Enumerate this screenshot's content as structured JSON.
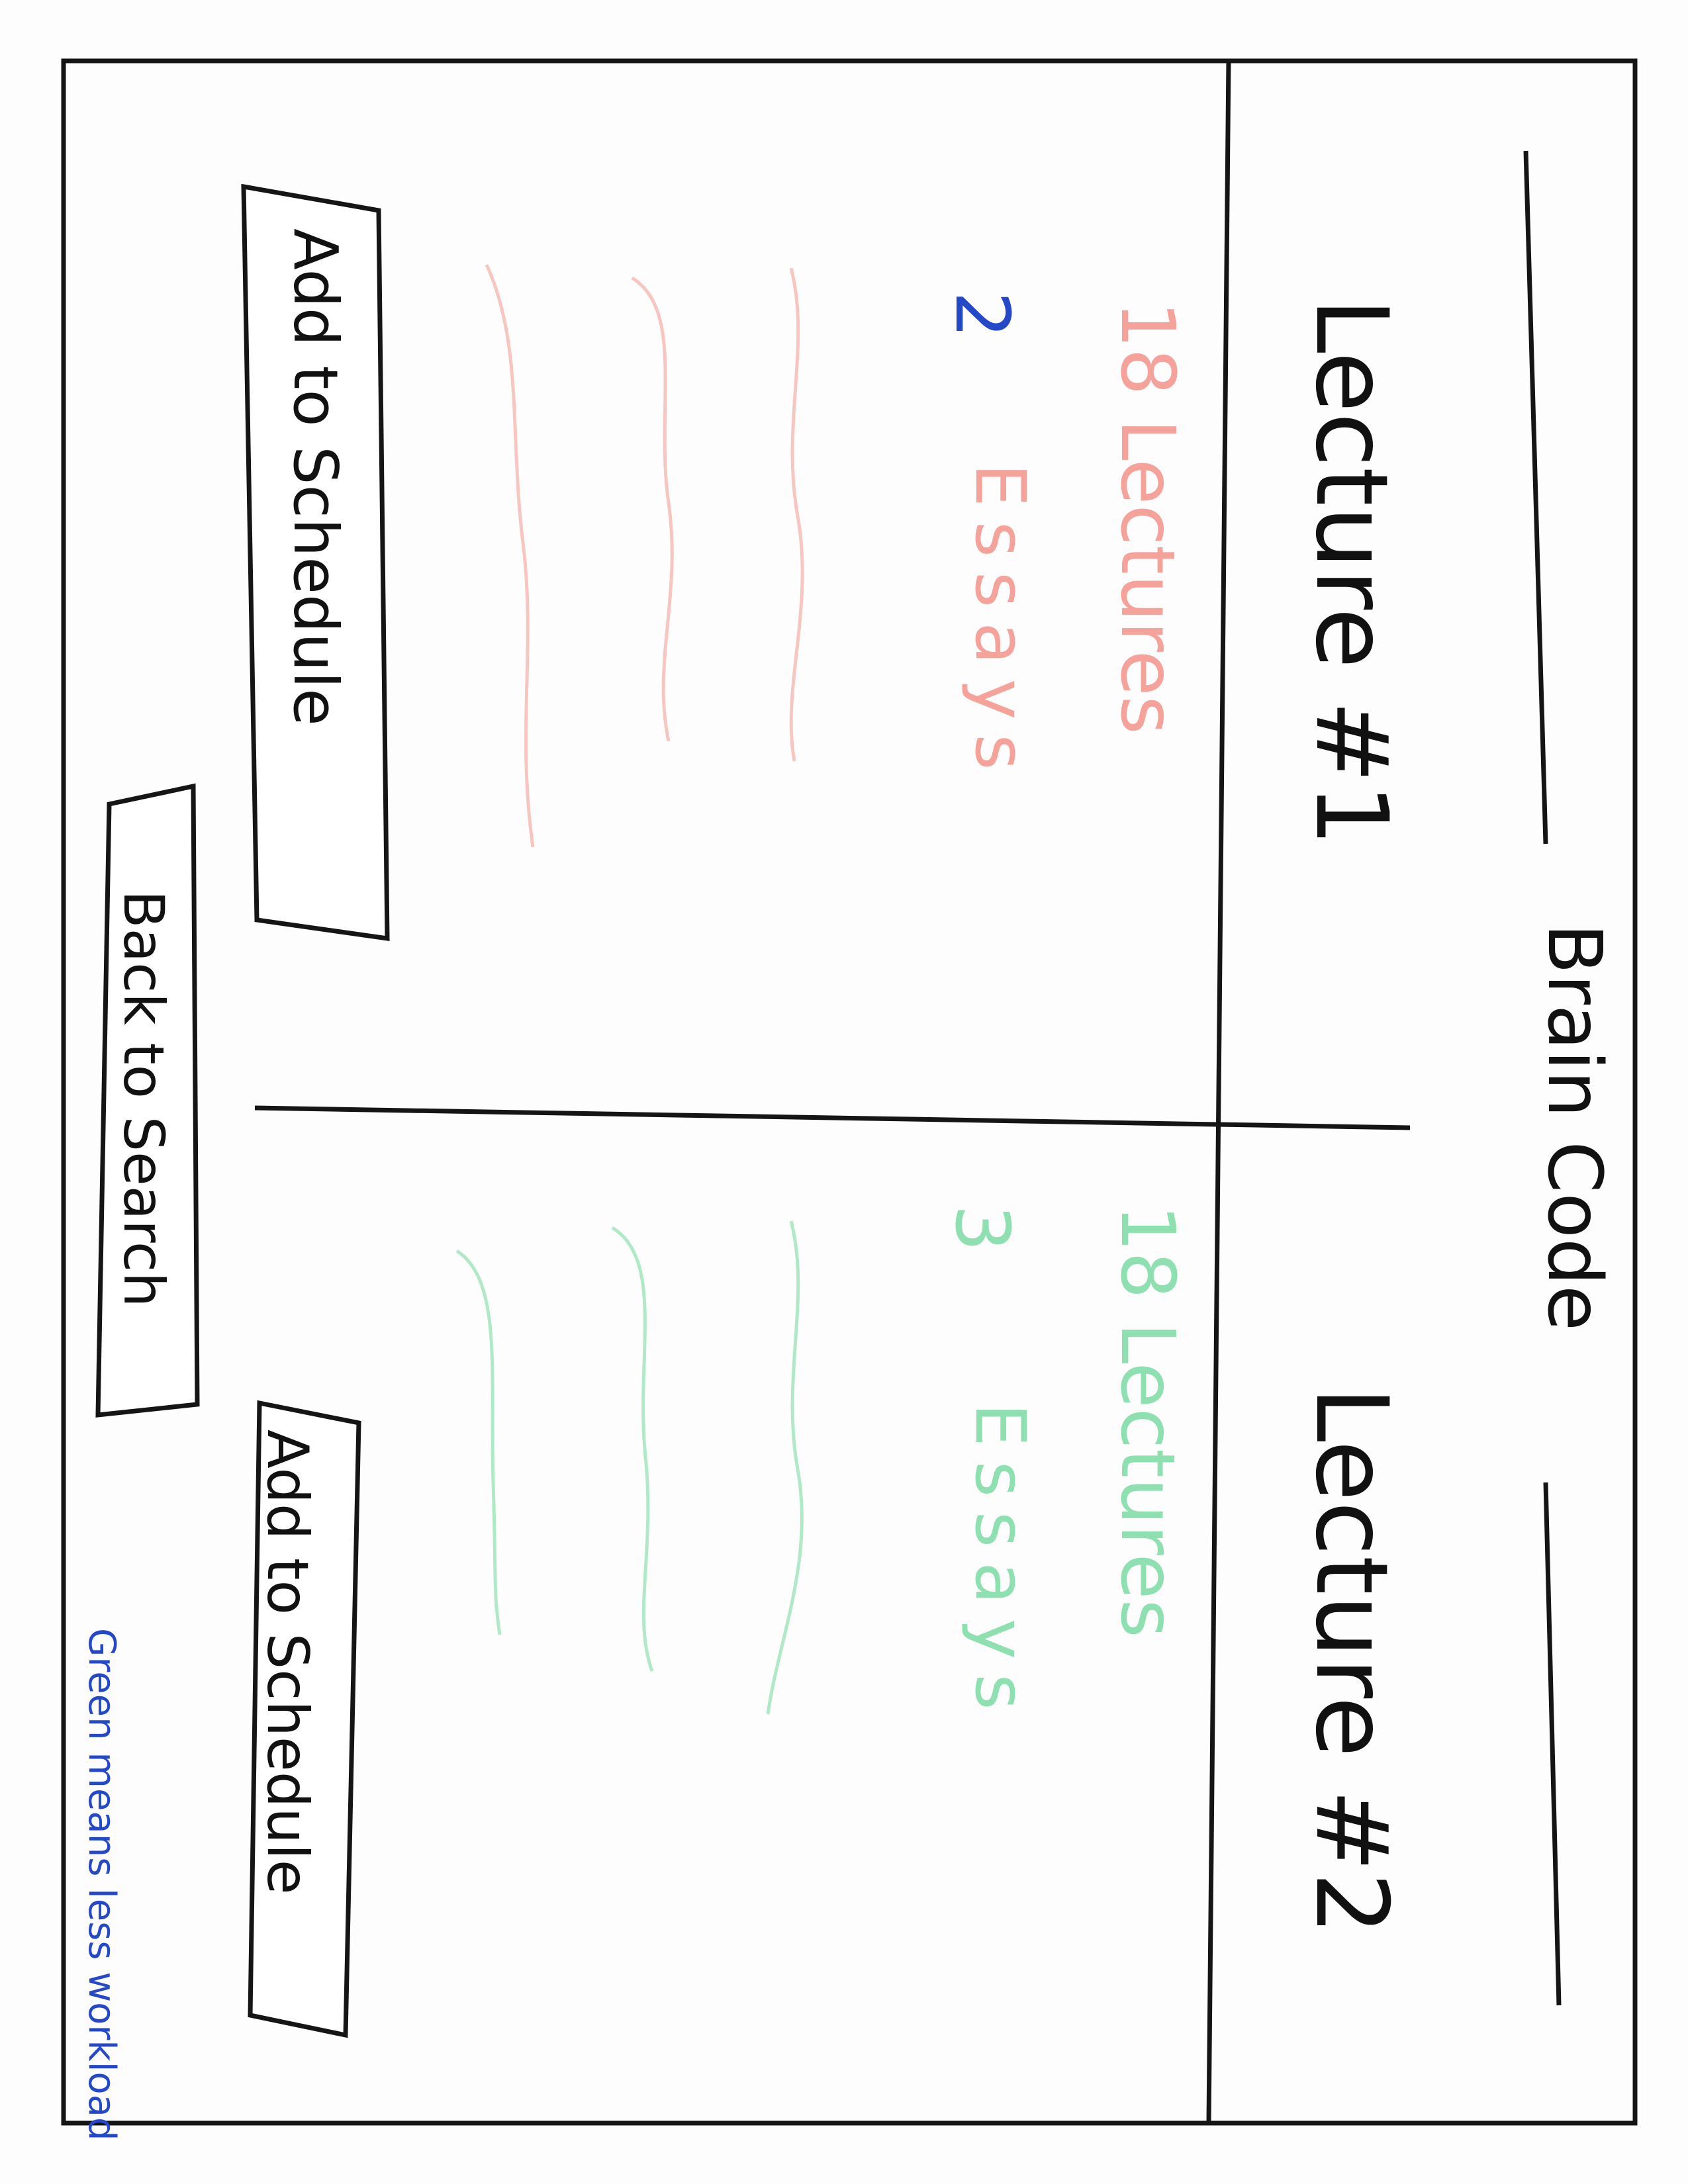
{
  "app": {
    "title": "Brain Code"
  },
  "course_1": {
    "title": "Lecture #1",
    "lectures_text": "18 Lectures",
    "essays_count": "2",
    "essays_label": "Essays",
    "button_label": "Add to Schedule",
    "color": "#f4a29a",
    "correction_color": "#2548c8"
  },
  "course_2": {
    "title": "Lecture #2",
    "lectures_text": "18 Lectures",
    "essays_count": "3",
    "essays_label": "Essays",
    "button_label": "Add to Schedule",
    "color": "#8ee0b0"
  },
  "footer": {
    "back_button_label": "Back to Search"
  },
  "annotation": {
    "note": "Green means less workload",
    "color": "#2548c8"
  }
}
